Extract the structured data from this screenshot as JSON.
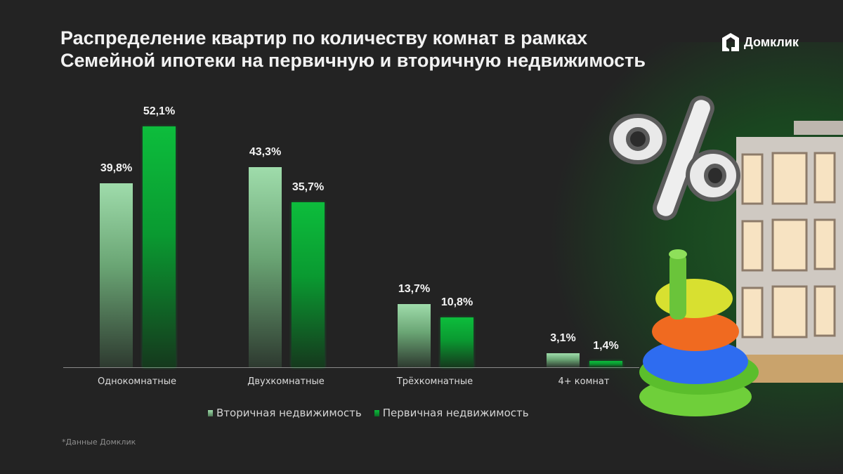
{
  "header": {
    "title_line1": "Распределение квартир по количеству комнат в рамках",
    "title_line2": "Семейной ипотеки на первичную и вторичную недвижимость",
    "brand": "Домклик"
  },
  "legend": {
    "secondary": "Вторичная недвижимость",
    "primary": "Первичная недвижимость"
  },
  "footnote": "*Данные Домклик",
  "colors": {
    "secondary": "#9fdcab",
    "primary": "#0dbd3c",
    "background": "#232323"
  },
  "chart_data": {
    "type": "bar",
    "title": "Распределение квартир по количеству комнат в рамках Семейной ипотеки на первичную и вторичную недвижимость",
    "xlabel": "",
    "ylabel": "",
    "categories": [
      "Однокомнатные",
      "Двухкомнатные",
      "Трёхкомнатные",
      "4+ комнат"
    ],
    "series": [
      {
        "name": "Вторичная недвижимость",
        "values": [
          39.8,
          43.3,
          13.7,
          3.1
        ],
        "labels": [
          "39,8%",
          "43,3%",
          "13,7%",
          "3,1%"
        ]
      },
      {
        "name": "Первичная недвижимость",
        "values": [
          52.1,
          35.7,
          10.8,
          1.4
        ],
        "labels": [
          "52,1%",
          "35,7%",
          "10,8%",
          "1,4%"
        ]
      }
    ],
    "unit": "%",
    "grid": false,
    "legend_position": "bottom",
    "source": "*Данные Домклик"
  }
}
